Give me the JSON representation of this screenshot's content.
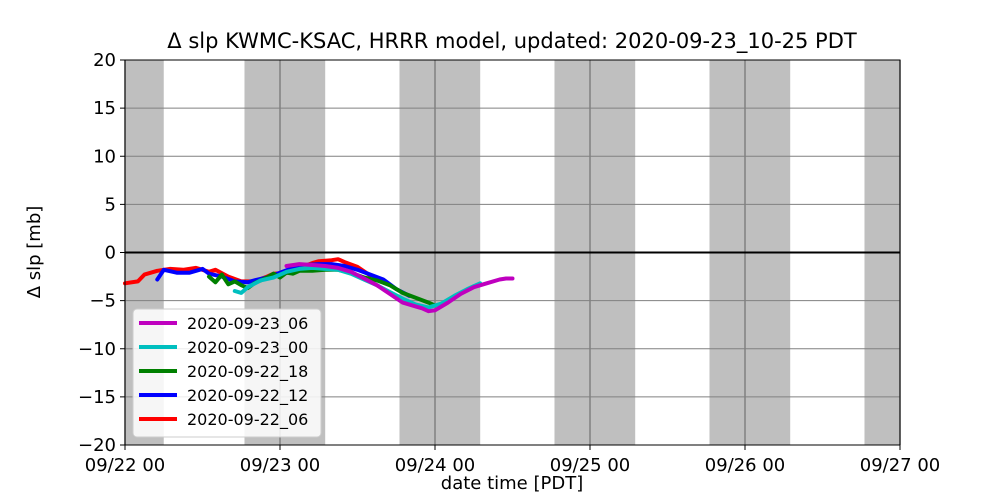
{
  "chart_data": {
    "type": "line",
    "title": "Δ slp KWMC-KSAC, HRRR model, updated: 2020-09-23_10-25 PDT",
    "xlabel": "date time [PDT]",
    "ylabel": "Δ slp [mb]",
    "xlim": [
      "2020-09-22T00:00",
      "2020-09-27T00:00"
    ],
    "ylim": [
      -20,
      20
    ],
    "x_ticks": [
      "09/22 00",
      "09/23 00",
      "09/24 00",
      "09/25 00",
      "09/26 00",
      "09/27 00"
    ],
    "y_ticks": [
      20,
      15,
      10,
      5,
      0,
      -5,
      -10,
      -15,
      -20
    ],
    "grid": true,
    "zero_line": 0,
    "legend_position": "lower-left",
    "night_bands": [
      [
        "2020-09-22T00:00",
        "2020-09-22T06:00"
      ],
      [
        "2020-09-22T18:30",
        "2020-09-23T07:00"
      ],
      [
        "2020-09-23T18:30",
        "2020-09-24T07:00"
      ],
      [
        "2020-09-24T18:30",
        "2020-09-25T07:00"
      ],
      [
        "2020-09-25T18:30",
        "2020-09-26T07:00"
      ],
      [
        "2020-09-26T18:30",
        "2020-09-27T00:00"
      ]
    ],
    "series": [
      {
        "name": "2020-09-22_06",
        "color": "#ff0000",
        "linewidth": 4,
        "x": [
          "2020-09-22T00:00",
          "2020-09-22T02:00",
          "2020-09-22T03:00",
          "2020-09-22T05:00",
          "2020-09-22T07:00",
          "2020-09-22T09:00",
          "2020-09-22T11:00",
          "2020-09-22T12:00",
          "2020-09-22T13:00",
          "2020-09-22T14:00",
          "2020-09-22T16:00",
          "2020-09-22T18:00",
          "2020-09-22T20:00",
          "2020-09-22T22:00",
          "2020-09-22T23:00",
          "2020-09-23T01:00",
          "2020-09-23T03:00",
          "2020-09-23T05:00",
          "2020-09-23T06:00",
          "2020-09-23T08:00",
          "2020-09-23T09:00",
          "2020-09-23T10:00",
          "2020-09-23T12:00",
          "2020-09-23T14:00"
        ],
        "y": [
          -3.2,
          -3.0,
          -2.3,
          -1.9,
          -1.7,
          -1.8,
          -1.6,
          -1.8,
          -2.0,
          -1.8,
          -2.5,
          -3.0,
          -3.0,
          -2.5,
          -2.2,
          -2.1,
          -1.6,
          -1.1,
          -0.9,
          -0.8,
          -0.7,
          -1.0,
          -1.5,
          -2.4
        ]
      },
      {
        "name": "2020-09-22_12",
        "color": "#0000ff",
        "linewidth": 4,
        "x": [
          "2020-09-22T05:00",
          "2020-09-22T06:00",
          "2020-09-22T08:00",
          "2020-09-22T10:00",
          "2020-09-22T12:00",
          "2020-09-22T13:00",
          "2020-09-22T15:00",
          "2020-09-22T17:00",
          "2020-09-22T19:00",
          "2020-09-22T20:00",
          "2020-09-22T22:00",
          "2020-09-23T00:00",
          "2020-09-23T02:00",
          "2020-09-23T04:00",
          "2020-09-23T06:00",
          "2020-09-23T08:00",
          "2020-09-23T10:00",
          "2020-09-23T12:00",
          "2020-09-23T14:00",
          "2020-09-23T16:00",
          "2020-09-23T18:00",
          "2020-09-23T20:00"
        ],
        "y": [
          -2.8,
          -1.8,
          -2.1,
          -2.1,
          -1.7,
          -2.2,
          -2.5,
          -3.0,
          -3.1,
          -2.9,
          -2.6,
          -2.1,
          -1.6,
          -1.3,
          -1.2,
          -1.2,
          -1.4,
          -1.8,
          -2.3,
          -2.8,
          -3.8,
          -4.5
        ]
      },
      {
        "name": "2020-09-22_18",
        "color": "#008000",
        "linewidth": 4,
        "x": [
          "2020-09-22T13:00",
          "2020-09-22T14:00",
          "2020-09-22T15:00",
          "2020-09-22T16:00",
          "2020-09-22T17:00",
          "2020-09-22T18:00",
          "2020-09-22T19:00",
          "2020-09-22T20:00",
          "2020-09-22T21:00",
          "2020-09-22T22:00",
          "2020-09-22T23:00",
          "2020-09-23T00:00",
          "2020-09-23T01:00",
          "2020-09-23T02:00",
          "2020-09-23T03:00",
          "2020-09-23T05:00",
          "2020-09-23T07:00",
          "2020-09-23T09:00",
          "2020-09-23T11:00",
          "2020-09-23T13:00",
          "2020-09-23T15:00",
          "2020-09-23T17:00",
          "2020-09-23T19:00",
          "2020-09-23T21:00",
          "2020-09-23T23:00",
          "2020-09-23T23:59"
        ],
        "y": [
          -2.5,
          -3.1,
          -2.3,
          -3.3,
          -3.0,
          -3.4,
          -3.7,
          -3.2,
          -2.9,
          -2.6,
          -2.2,
          -2.6,
          -2.1,
          -2.2,
          -1.9,
          -1.9,
          -1.8,
          -1.8,
          -2.1,
          -2.6,
          -2.9,
          -3.4,
          -4.2,
          -4.7,
          -5.2,
          -5.5
        ]
      },
      {
        "name": "2020-09-23_00",
        "color": "#00bfbf",
        "linewidth": 4,
        "x": [
          "2020-09-22T17:00",
          "2020-09-22T18:00",
          "2020-09-22T19:00",
          "2020-09-22T21:00",
          "2020-09-22T23:00",
          "2020-09-23T01:00",
          "2020-09-23T03:00",
          "2020-09-23T05:00",
          "2020-09-23T07:00",
          "2020-09-23T09:00",
          "2020-09-23T11:00",
          "2020-09-23T13:00",
          "2020-09-23T15:00",
          "2020-09-23T17:00",
          "2020-09-23T19:00",
          "2020-09-23T21:00",
          "2020-09-23T23:00",
          "2020-09-24T01:00",
          "2020-09-24T03:00",
          "2020-09-24T05:00",
          "2020-09-24T07:00"
        ],
        "y": [
          -4.0,
          -4.2,
          -3.6,
          -2.9,
          -2.6,
          -2.0,
          -1.7,
          -1.6,
          -1.7,
          -1.8,
          -2.2,
          -2.8,
          -3.4,
          -4.1,
          -4.8,
          -5.4,
          -5.7,
          -5.3,
          -4.5,
          -3.8,
          -3.2
        ]
      },
      {
        "name": "2020-09-23_06",
        "color": "#bf00bf",
        "linewidth": 4,
        "x": [
          "2020-09-23T01:00",
          "2020-09-23T03:00",
          "2020-09-23T05:00",
          "2020-09-23T07:00",
          "2020-09-23T09:00",
          "2020-09-23T11:00",
          "2020-09-23T13:00",
          "2020-09-23T15:00",
          "2020-09-23T17:00",
          "2020-09-23T19:00",
          "2020-09-23T21:00",
          "2020-09-23T22:00",
          "2020-09-23T23:00",
          "2020-09-24T00:00",
          "2020-09-24T02:00",
          "2020-09-24T04:00",
          "2020-09-24T06:00",
          "2020-09-24T08:00",
          "2020-09-24T10:00",
          "2020-09-24T11:00",
          "2020-09-24T12:00"
        ],
        "y": [
          -1.4,
          -1.2,
          -1.3,
          -1.4,
          -1.6,
          -2.0,
          -2.7,
          -3.4,
          -4.3,
          -5.2,
          -5.6,
          -5.8,
          -6.1,
          -6.0,
          -5.2,
          -4.3,
          -3.6,
          -3.2,
          -2.8,
          -2.7,
          -2.7
        ]
      }
    ]
  }
}
